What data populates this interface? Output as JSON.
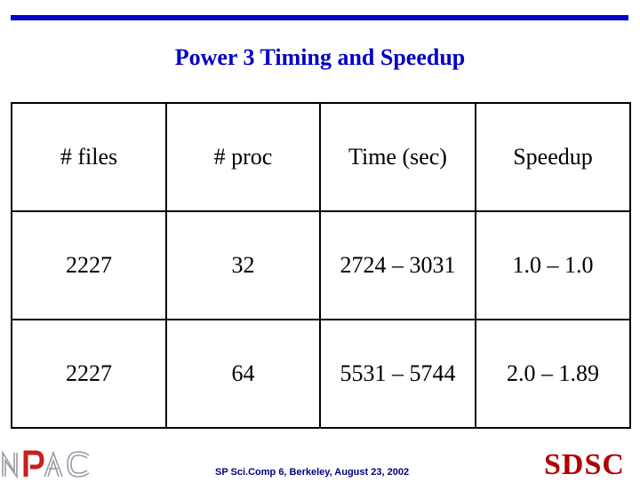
{
  "slide": {
    "title": "Power 3 Timing and Speedup"
  },
  "table": {
    "headers": [
      "# files",
      "# proc",
      "Time (sec)",
      "Speedup"
    ],
    "rows": [
      [
        "2227",
        "32",
        "2724 – 3031",
        "1.0 – 1.0"
      ],
      [
        "2227",
        "64",
        "5531 – 5744",
        "2.0 – 1.89"
      ]
    ]
  },
  "footer": {
    "text": "SP Sci.Comp 6, Berkeley, August 23, 2002",
    "left_logo": "NPAC",
    "right_logo": "SDSC"
  },
  "colors": {
    "accent_blue": "#0000c8",
    "footer_navy": "#000080",
    "sdsc_red": "#b00000"
  }
}
